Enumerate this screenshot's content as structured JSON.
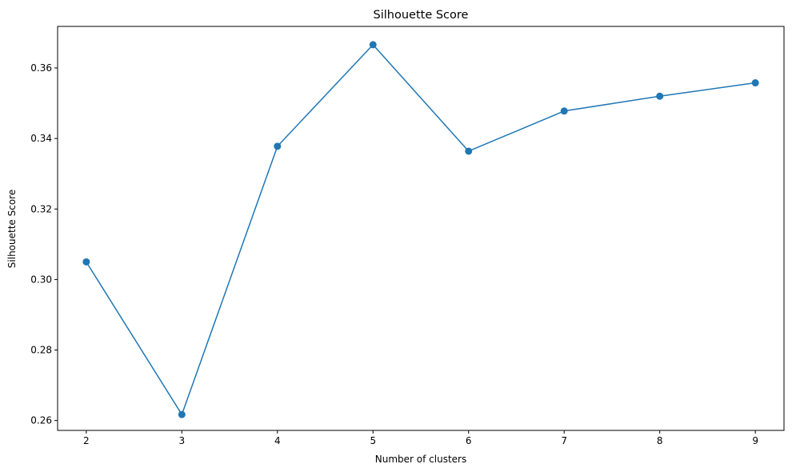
{
  "chart_data": {
    "type": "line",
    "title": "Silhouette Score",
    "xlabel": "Number of clusters",
    "ylabel": "Silhouette Score",
    "x": [
      2,
      3,
      4,
      5,
      6,
      7,
      8,
      9
    ],
    "xlim": [
      1.7,
      9.3
    ],
    "ylim": [
      0.2572,
      0.3718
    ],
    "xticks": [
      2,
      3,
      4,
      5,
      6,
      7,
      8,
      9
    ],
    "yticks": [
      0.26,
      0.28,
      0.3,
      0.32,
      0.34,
      0.36
    ],
    "ytick_labels": [
      "0.26",
      "0.28",
      "0.30",
      "0.32",
      "0.34",
      "0.36"
    ],
    "xtick_labels": [
      "2",
      "3",
      "4",
      "5",
      "6",
      "7",
      "8",
      "9"
    ],
    "grid": false,
    "legend": "none",
    "series": [
      {
        "values": [
          0.305,
          0.2617,
          0.3378,
          0.3666,
          0.3364,
          0.3478,
          0.352,
          0.3558
        ],
        "color": "#1f77b4",
        "marker": "circle"
      }
    ]
  }
}
